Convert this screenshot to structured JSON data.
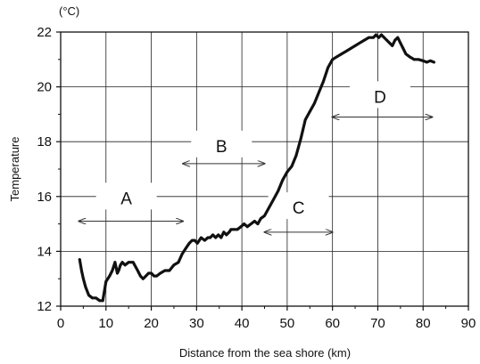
{
  "chart_data": {
    "type": "line",
    "unit": "(°C)",
    "xlabel": "Distance from the sea shore (km)",
    "ylabel": "Temperature",
    "xlim": [
      0,
      90
    ],
    "ylim": [
      12,
      22
    ],
    "xticks": [
      0,
      10,
      20,
      30,
      40,
      50,
      60,
      70,
      80,
      90
    ],
    "yticks": [
      12,
      14,
      16,
      18,
      20,
      22
    ],
    "grid": true,
    "line_color": "#111111",
    "series": [
      {
        "x": [
          4.2,
          4.6,
          5.0,
          5.5,
          6.2,
          7.0,
          7.8,
          8.6,
          9.3,
          10.0,
          10.4,
          10.8,
          11.4,
          12.0,
          12.5,
          12.8,
          13.2,
          13.6,
          14.2,
          15.0,
          16.0,
          17.0,
          17.6,
          18.2,
          18.8,
          19.4,
          20.0,
          20.6,
          21.2,
          22.0,
          23.0,
          24.0,
          25.0,
          26.0,
          26.8,
          27.6,
          28.4,
          29.0,
          29.6,
          30.2,
          31.0,
          31.8,
          32.5,
          33.0,
          33.6,
          34.2,
          34.8,
          35.4,
          36.0,
          36.6,
          37.2,
          37.6,
          38.2,
          39.0,
          39.8,
          40.5,
          41.2,
          42.0,
          42.8,
          43.5,
          44.2,
          45.0,
          46.0,
          47.0,
          48.0,
          49.0,
          50.0,
          51.0,
          52.0,
          53.0,
          54.0,
          55.0,
          56.0,
          57.0,
          58.0,
          59.0,
          60.0,
          61.0,
          62.0,
          63.0,
          64.0,
          65.0,
          66.0,
          67.0,
          68.0,
          69.0,
          69.6,
          70.2,
          70.8,
          71.4,
          72.0,
          72.6,
          73.2,
          73.8,
          74.4,
          75.0,
          75.6,
          76.2,
          77.0,
          78.0,
          79.0,
          80.0,
          80.8,
          81.6,
          82.4
        ],
        "y": [
          13.7,
          13.3,
          13.0,
          12.7,
          12.4,
          12.3,
          12.3,
          12.2,
          12.2,
          12.9,
          13.0,
          13.1,
          13.3,
          13.6,
          13.2,
          13.3,
          13.5,
          13.6,
          13.5,
          13.6,
          13.6,
          13.3,
          13.1,
          13.0,
          13.1,
          13.2,
          13.2,
          13.1,
          13.1,
          13.2,
          13.3,
          13.3,
          13.5,
          13.6,
          13.9,
          14.1,
          14.3,
          14.4,
          14.4,
          14.3,
          14.5,
          14.4,
          14.5,
          14.5,
          14.6,
          14.5,
          14.6,
          14.5,
          14.7,
          14.6,
          14.7,
          14.8,
          14.8,
          14.8,
          14.9,
          15.0,
          14.9,
          15.0,
          15.1,
          15.0,
          15.2,
          15.3,
          15.6,
          15.9,
          16.2,
          16.6,
          16.9,
          17.1,
          17.5,
          18.1,
          18.8,
          19.1,
          19.4,
          19.8,
          20.2,
          20.7,
          21.0,
          21.1,
          21.2,
          21.3,
          21.4,
          21.5,
          21.6,
          21.7,
          21.8,
          21.8,
          21.9,
          21.8,
          21.9,
          21.8,
          21.7,
          21.6,
          21.5,
          21.7,
          21.8,
          21.6,
          21.4,
          21.2,
          21.1,
          21.0,
          21.0,
          20.95,
          20.9,
          20.95,
          20.9
        ]
      }
    ],
    "zones": [
      {
        "label": "A",
        "x_start": 4.0,
        "x_end": 27.0,
        "arrow_y": 15.1,
        "label_x": 14.5,
        "label_y": 15.95
      },
      {
        "label": "B",
        "x_start": 27.0,
        "x_end": 45.0,
        "arrow_y": 17.2,
        "label_x": 35.5,
        "label_y": 17.85
      },
      {
        "label": "C",
        "x_start": 45.0,
        "x_end": 60.0,
        "arrow_y": 14.7,
        "label_x": 52.5,
        "label_y": 15.6
      },
      {
        "label": "D",
        "x_start": 60.0,
        "x_end": 82.0,
        "arrow_y": 18.9,
        "label_x": 70.5,
        "label_y": 19.65
      }
    ]
  }
}
